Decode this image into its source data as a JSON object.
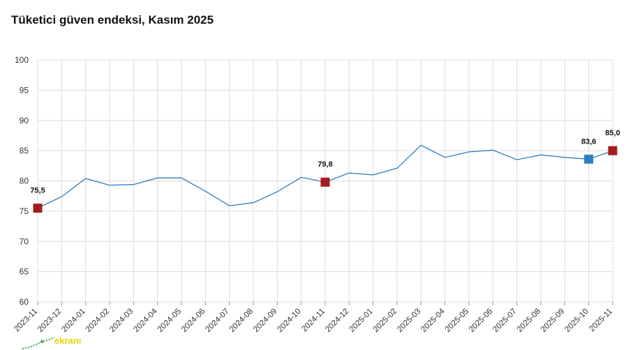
{
  "title": "Tüketici güven endeksi, Kasım 2025",
  "logo": {
    "text": "ekranı"
  },
  "colors": {
    "line": "#2e7fbf",
    "highlight_red": "#a61c1c",
    "highlight_blue": "#2e7fbf"
  },
  "chart_data": {
    "type": "line",
    "title": "Tüketici güven endeksi, Kasım 2025",
    "xlabel": "",
    "ylabel": "",
    "ylim": [
      60,
      100
    ],
    "yticks": [
      "60",
      "65",
      "70",
      "75",
      "80",
      "85",
      "90",
      "95",
      "100"
    ],
    "grid": true,
    "categories": [
      "2023-11",
      "2023-12",
      "2024-01",
      "2024-02",
      "2024-03",
      "2024-04",
      "2024-05",
      "2024-06",
      "2024-07",
      "2024-08",
      "2024-09",
      "2024-10",
      "2024-11",
      "2024-12",
      "2025-01",
      "2025-02",
      "2025-03",
      "2025-04",
      "2025-05",
      "2025-06",
      "2025-07",
      "2025-08",
      "2025-09",
      "2025-10",
      "2025-11"
    ],
    "series": [
      {
        "values": [
          75.5,
          77.4,
          80.4,
          79.3,
          79.4,
          80.5,
          80.5,
          78.3,
          75.9,
          76.4,
          78.2,
          80.6,
          79.8,
          81.3,
          81.0,
          82.1,
          85.9,
          83.9,
          84.8,
          85.1,
          83.5,
          84.3,
          83.9,
          83.6,
          85.0
        ]
      }
    ],
    "highlights": [
      {
        "index": 0,
        "label": "75,5",
        "color": "red"
      },
      {
        "index": 12,
        "label": "79,8",
        "color": "red"
      },
      {
        "index": 23,
        "label": "83,6",
        "color": "blue"
      },
      {
        "index": 24,
        "label": "85,0",
        "color": "red"
      }
    ]
  }
}
